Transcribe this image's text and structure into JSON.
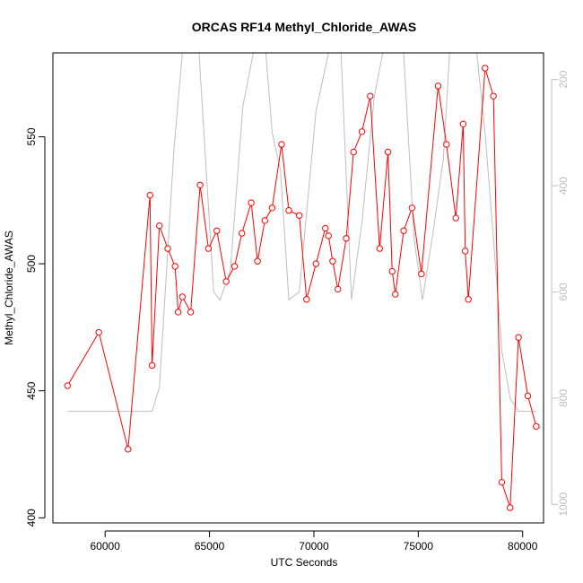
{
  "chart_data": {
    "type": "line",
    "title": "ORCAS RF14 Methyl_Chloride_AWAS",
    "xlabel": "UTC Seconds",
    "ylabel": "Methyl_Chloride_AWAS",
    "xlim": [
      57500,
      81000
    ],
    "ylim": [
      398,
      583
    ],
    "x_ticks": [
      60000,
      65000,
      70000,
      75000,
      80000
    ],
    "y_ticks": [
      400,
      450,
      500,
      550
    ],
    "y2_ticks": [
      200,
      400,
      600,
      800,
      1000
    ],
    "y2lim": [
      1035,
      150
    ],
    "colors": {
      "series": "#ff0000",
      "secondary": "#bebebe",
      "secondary_ticks": "#bebebe",
      "axis": "#000000"
    },
    "series": [
      {
        "marker": "open-circle",
        "x": [
          58200,
          59700,
          61100,
          62150,
          62250,
          62600,
          63000,
          63350,
          63500,
          63700,
          64100,
          64550,
          64950,
          65350,
          65800,
          66200,
          66550,
          67000,
          67300,
          67650,
          68000,
          68450,
          68800,
          69300,
          69650,
          70100,
          70550,
          70700,
          70900,
          71150,
          71550,
          71900,
          72300,
          72700,
          73150,
          73550,
          73750,
          73900,
          74300,
          74700,
          75150,
          75950,
          76350,
          76800,
          77150,
          77250,
          77400,
          78200,
          78600,
          79000,
          79400,
          79800,
          80250,
          80650
        ],
        "y": [
          452,
          473,
          427,
          527,
          460,
          515,
          506,
          499,
          481,
          487,
          481,
          531,
          506,
          513,
          493,
          499,
          512,
          524,
          501,
          517,
          522,
          547,
          521,
          519,
          486,
          500,
          514,
          511,
          501,
          490,
          510,
          544,
          552,
          566,
          506,
          544,
          497,
          488,
          513,
          522,
          496,
          570,
          547,
          518,
          555,
          505,
          486,
          577,
          566,
          414,
          404,
          471,
          448,
          436
        ]
      },
      {
        "style": "line",
        "x": [
          58200,
          59700,
          61100,
          62250,
          62600,
          63300,
          63700,
          63900,
          64500,
          65200,
          65500,
          66000,
          66600,
          67100,
          67300,
          67700,
          68000,
          68400,
          68800,
          69300,
          69700,
          70100,
          70700,
          71300,
          71800,
          72300,
          72900,
          73300,
          73800,
          74300,
          74800,
          75200,
          75700,
          76200,
          76500,
          76900,
          77200,
          77500,
          77800,
          78200,
          78600,
          79000,
          79400,
          79800,
          80250,
          80650
        ],
        "y": [
          825,
          825,
          825,
          825,
          780,
          330,
          150,
          150,
          150,
          600,
          615,
          560,
          250,
          150,
          150,
          150,
          300,
          370,
          615,
          600,
          430,
          260,
          150,
          150,
          615,
          470,
          230,
          150,
          150,
          150,
          500,
          615,
          490,
          350,
          150,
          150,
          150,
          150,
          150,
          300,
          500,
          710,
          800,
          825,
          825,
          825
        ]
      }
    ]
  }
}
